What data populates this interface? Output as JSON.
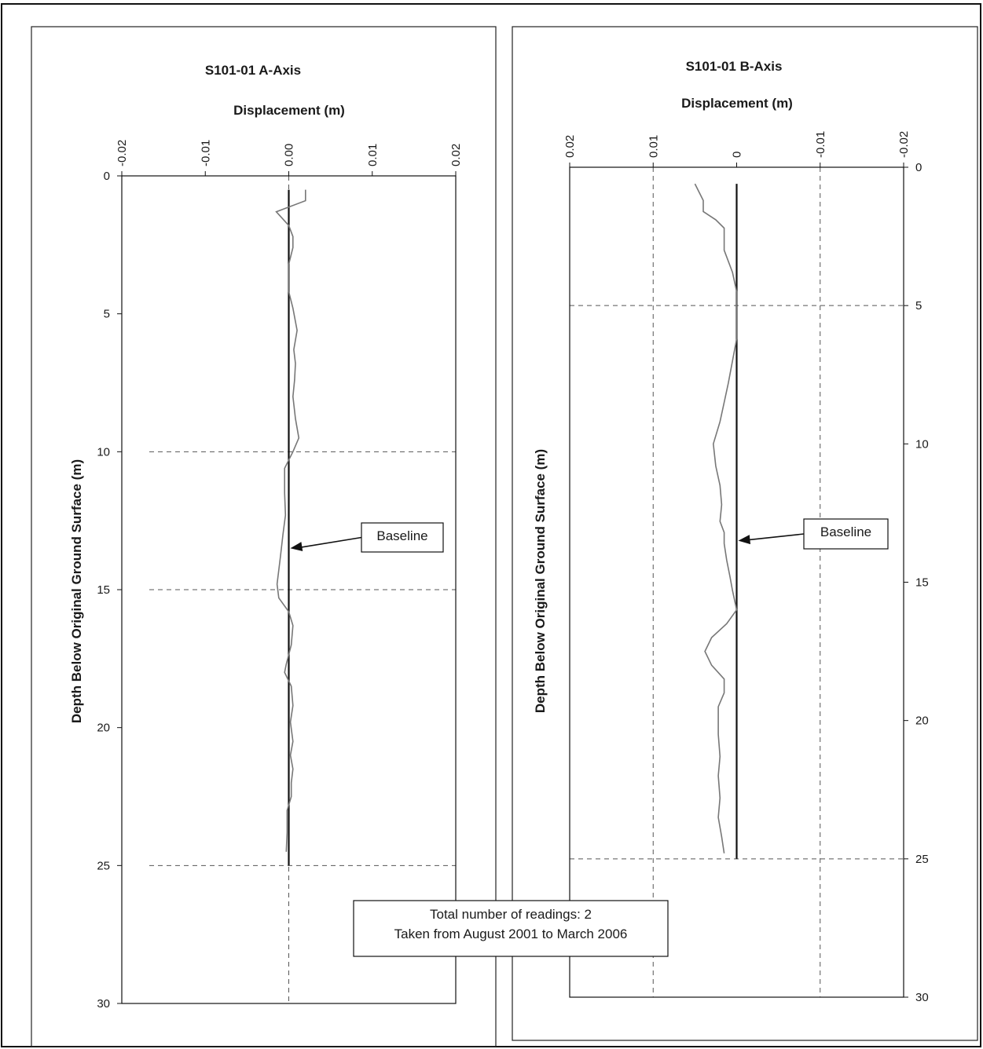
{
  "note": {
    "line1": "Total number of readings: 2",
    "line2": "Taken from August 2001 to March 2006"
  },
  "colors": {
    "baseline": "#111111",
    "reading": "#777777",
    "grid": "#555555"
  },
  "chart_data": [
    {
      "type": "line",
      "title": "S101-01 A-Axis",
      "xlabel": "Displacement (m)",
      "ylabel": "Depth Below Original Ground Surface (m)",
      "xlim": [
        -0.02,
        0.02
      ],
      "x_reversed": false,
      "ylim": [
        0,
        30
      ],
      "y_inverted": true,
      "x_ticks": [
        -0.02,
        -0.01,
        0.0,
        0.01,
        0.02
      ],
      "x_tick_labels": [
        "-0.02",
        "-0.01",
        "0.00",
        "0.01",
        "0.02"
      ],
      "y_ticks": [
        0,
        5,
        10,
        15,
        20,
        25,
        30
      ],
      "y_tick_labels": [
        "0",
        "5",
        "10",
        "15",
        "20",
        "25",
        "30"
      ],
      "y_axis_side": "left",
      "grid": "dashed at x=0 and depths 10, 15, 25",
      "annotation": "Baseline",
      "annotation_target": {
        "x": 0.0,
        "depth": 13.5
      },
      "series": [
        {
          "name": "Baseline",
          "points": [
            [
              0.0,
              0.5
            ],
            [
              0.0,
              25.0
            ]
          ]
        },
        {
          "points": [
            [
              0.002,
              0.5
            ],
            [
              0.002,
              0.9
            ],
            [
              -0.0015,
              1.3
            ],
            [
              0.0,
              1.8
            ],
            [
              0.0005,
              2.2
            ],
            [
              0.0005,
              2.6
            ],
            [
              0.0,
              3.2
            ],
            [
              0.0,
              4.2
            ],
            [
              0.0005,
              4.8
            ],
            [
              0.001,
              5.6
            ],
            [
              0.0006,
              6.3
            ],
            [
              0.0008,
              6.8
            ],
            [
              0.0007,
              7.4
            ],
            [
              0.0005,
              8.0
            ],
            [
              0.0008,
              8.8
            ],
            [
              0.0012,
              9.5
            ],
            [
              0.0005,
              10.0
            ],
            [
              -0.0005,
              10.6
            ],
            [
              -0.0005,
              11.5
            ],
            [
              -0.0004,
              12.3
            ],
            [
              -0.0007,
              13.0
            ],
            [
              -0.001,
              13.8
            ],
            [
              -0.0014,
              14.8
            ],
            [
              -0.0012,
              15.3
            ],
            [
              0.0,
              15.8
            ],
            [
              0.0005,
              16.3
            ],
            [
              0.0003,
              17.0
            ],
            [
              -0.0003,
              17.7
            ],
            [
              -0.0005,
              18.0
            ],
            [
              0.0003,
              18.5
            ],
            [
              0.0005,
              19.2
            ],
            [
              0.0002,
              19.8
            ],
            [
              0.0005,
              20.5
            ],
            [
              0.0002,
              21.0
            ],
            [
              0.0005,
              21.5
            ],
            [
              0.0003,
              22.0
            ],
            [
              0.0003,
              22.5
            ],
            [
              -0.0002,
              23.0
            ],
            [
              -0.0002,
              23.8
            ],
            [
              -0.0003,
              24.5
            ]
          ]
        }
      ]
    },
    {
      "type": "line",
      "title": "S101-01 B-Axis",
      "xlabel": "Displacement (m)",
      "ylabel": "Depth Below Original Ground Surface (m)",
      "xlim": [
        -0.02,
        0.02
      ],
      "x_reversed": true,
      "ylim": [
        0,
        30
      ],
      "y_inverted": true,
      "x_ticks": [
        0.02,
        0.01,
        0,
        -0.01,
        -0.02
      ],
      "x_tick_labels": [
        "0.02",
        "0.01",
        "0",
        "-0.01",
        "-0.02"
      ],
      "y_ticks": [
        0,
        5,
        10,
        15,
        20,
        25,
        30
      ],
      "y_tick_labels": [
        "0",
        "5",
        "10",
        "15",
        "20",
        "25",
        "30"
      ],
      "y_axis_side": "right",
      "grid": "dashed at x=0.01, -0.01 and depths 5, 25",
      "annotation": "Baseline",
      "annotation_target": {
        "x": 0.0,
        "depth": 13.5
      },
      "series": [
        {
          "name": "Baseline",
          "points": [
            [
              0.0,
              0.6
            ],
            [
              0.0,
              25.0
            ]
          ]
        },
        {
          "points": [
            [
              0.005,
              0.6
            ],
            [
              0.004,
              1.2
            ],
            [
              0.004,
              1.6
            ],
            [
              0.0025,
              1.9
            ],
            [
              0.0015,
              2.2
            ],
            [
              0.0015,
              3.0
            ],
            [
              0.0005,
              3.8
            ],
            [
              0.0,
              4.5
            ],
            [
              0.0,
              5.5
            ],
            [
              0.0,
              6.2
            ],
            [
              0.0005,
              7.0
            ],
            [
              0.001,
              7.8
            ],
            [
              0.0015,
              8.5
            ],
            [
              0.002,
              9.2
            ],
            [
              0.0028,
              10.0
            ],
            [
              0.0025,
              10.8
            ],
            [
              0.002,
              11.5
            ],
            [
              0.0018,
              12.2
            ],
            [
              0.002,
              12.8
            ],
            [
              0.0015,
              13.2
            ],
            [
              0.0015,
              13.6
            ],
            [
              0.0012,
              14.2
            ],
            [
              0.0008,
              14.8
            ],
            [
              0.0005,
              15.3
            ],
            [
              0.0,
              16.0
            ],
            [
              0.0012,
              16.5
            ],
            [
              0.003,
              17.0
            ],
            [
              0.0038,
              17.5
            ],
            [
              0.003,
              18.0
            ],
            [
              0.0015,
              18.5
            ],
            [
              0.0015,
              19.0
            ],
            [
              0.0022,
              19.5
            ],
            [
              0.0022,
              20.5
            ],
            [
              0.002,
              21.3
            ],
            [
              0.0022,
              22.0
            ],
            [
              0.002,
              22.8
            ],
            [
              0.0022,
              23.5
            ],
            [
              0.0018,
              24.2
            ],
            [
              0.0015,
              24.8
            ]
          ]
        }
      ]
    }
  ]
}
